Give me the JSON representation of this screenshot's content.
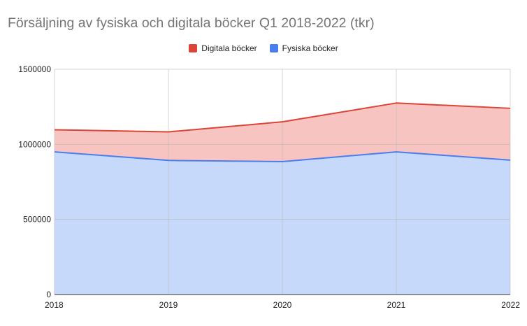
{
  "chart_data": {
    "type": "area",
    "stacked": true,
    "title": "Försäljning av fysiska och digitala böcker Q1 2018-2022 (tkr)",
    "categories": [
      "2018",
      "2019",
      "2020",
      "2021",
      "2022"
    ],
    "series": [
      {
        "name": "Fysiska böcker",
        "values": [
          950000,
          893000,
          885000,
          950000,
          895000
        ],
        "color": "#4a7ef0",
        "fill": "#c6d9fa"
      },
      {
        "name": "Digitala böcker",
        "values": [
          147000,
          190000,
          265000,
          325000,
          345000
        ],
        "color": "#db4437",
        "fill": "#f8c4c1"
      }
    ],
    "legend_order": [
      "Digitala böcker",
      "Fysiska böcker"
    ],
    "legend_position": "top-center",
    "ylim": [
      0,
      1500000
    ],
    "y_ticks": [
      0,
      500000,
      1000000,
      1500000
    ],
    "y_tick_labels": [
      "0",
      "500000",
      "1000000",
      "1500000"
    ],
    "grid": true,
    "xlabel": "",
    "ylabel": ""
  }
}
